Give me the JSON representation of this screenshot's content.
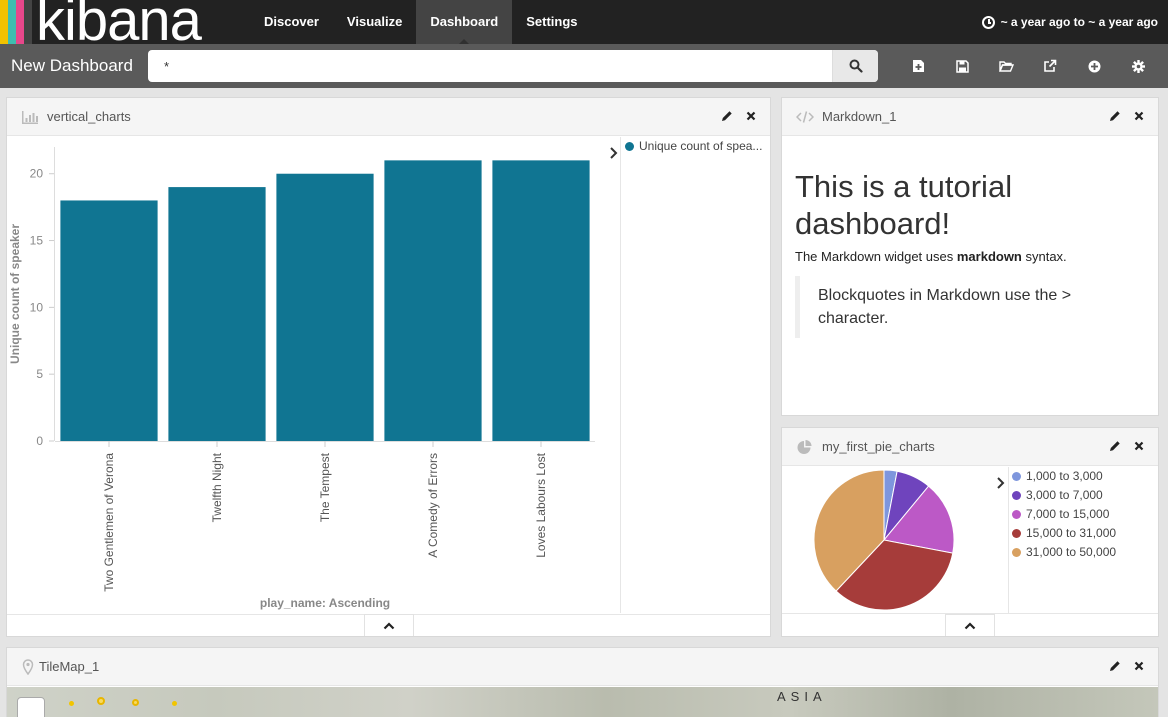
{
  "app": {
    "logo_text": "kibana",
    "logo_colors": [
      "#f2c200",
      "#3ebeb0",
      "#e8478b",
      "#444444"
    ]
  },
  "nav": {
    "tabs": [
      {
        "label": "Discover",
        "active": false
      },
      {
        "label": "Visualize",
        "active": false
      },
      {
        "label": "Dashboard",
        "active": true
      },
      {
        "label": "Settings",
        "active": false
      }
    ],
    "timepicker_label": "~ a year ago to ~ a year ago"
  },
  "dashboard": {
    "title": "New Dashboard",
    "query_value": "*",
    "toolbar_icons": [
      "new-dashboard-icon",
      "save-icon",
      "open-folder-icon",
      "share-icon",
      "add-panel-icon",
      "gear-icon"
    ]
  },
  "panels": {
    "vertical_charts": {
      "title": "vertical_charts",
      "legend": [
        "Unique count of spea..."
      ]
    },
    "markdown": {
      "title": "Markdown_1",
      "heading": "This is a tutorial dashboard!",
      "paragraph_before": "The Markdown widget uses ",
      "paragraph_bold": "markdown",
      "paragraph_after": " syntax.",
      "blockquote": "Blockquotes in Markdown use the > character."
    },
    "pie": {
      "title": "my_first_pie_charts"
    },
    "tilemap": {
      "title": "TileMap_1",
      "map_label": "ASIA"
    }
  },
  "colors": {
    "bar": "#107592",
    "nav_bg": "#222222",
    "subbar_bg": "#5a5a5a"
  },
  "chart_data": [
    {
      "type": "bar",
      "categories": [
        "Two Gentlemen of Verona",
        "Twelfth Night",
        "The Tempest",
        "A Comedy of Errors",
        "Loves Labours Lost"
      ],
      "series": [
        {
          "name": "Unique count of spea...",
          "values": [
            18,
            19,
            20,
            21,
            21
          ]
        }
      ],
      "xlabel": "play_name: Ascending",
      "ylabel": "Unique count of speaker",
      "ylim": [
        0,
        22
      ],
      "yticks": [
        0,
        5,
        10,
        15,
        20
      ],
      "grid": false,
      "legend_position": "right"
    },
    {
      "type": "pie",
      "categories": [
        "1,000 to 3,000",
        "3,000 to 7,000",
        "7,000 to 15,000",
        "15,000 to 31,000",
        "31,000 to 50,000"
      ],
      "values": [
        3,
        8,
        17,
        34,
        38
      ],
      "colors": [
        "#7e96dd",
        "#6f44bd",
        "#bc59c6",
        "#a63c3a",
        "#d8a060"
      ],
      "legend_position": "right"
    }
  ]
}
